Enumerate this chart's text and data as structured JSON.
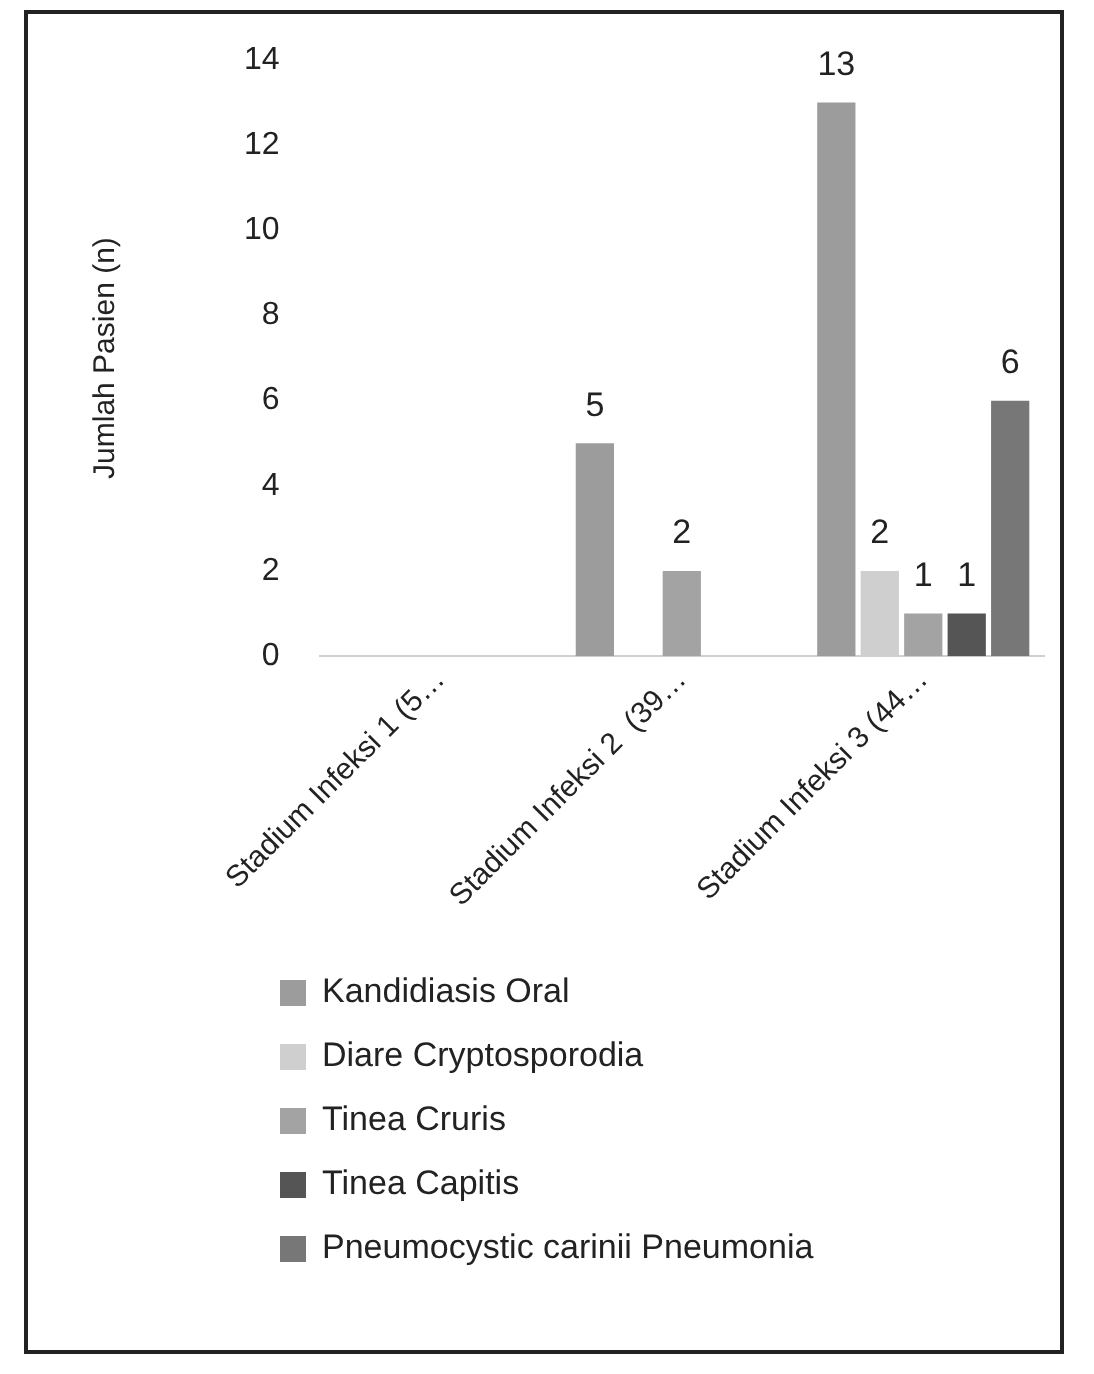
{
  "chart_data": {
    "type": "bar",
    "ylabel": "Jumlah Pasien (n)",
    "categories": [
      "Stadium Infeksi 1 (5…",
      "Stadium Infeksi 2  (39…",
      "Stadium Infeksi 3 (44…"
    ],
    "series": [
      {
        "name": "Kandidiasis Oral",
        "color": "#9c9c9c",
        "values": [
          0,
          5,
          13
        ],
        "value_labels": [
          null,
          "5",
          "13"
        ]
      },
      {
        "name": "Diare Cryptosporodia",
        "color": "#cfcfcf",
        "values": [
          0,
          0,
          2
        ],
        "value_labels": [
          null,
          null,
          "2"
        ]
      },
      {
        "name": "Tinea Cruris",
        "color": "#a3a3a3",
        "values": [
          0,
          2,
          1
        ],
        "value_labels": [
          null,
          "2",
          "1"
        ]
      },
      {
        "name": "Tinea Capitis",
        "color": "#555555",
        "values": [
          0,
          0,
          1
        ],
        "value_labels": [
          null,
          null,
          "1"
        ]
      },
      {
        "name": "Pneumocystic carinii Pneumonia",
        "color": "#777777",
        "values": [
          0,
          0,
          6
        ],
        "value_labels": [
          null,
          null,
          "6"
        ]
      }
    ],
    "ylim": [
      0,
      14
    ],
    "yticks": [
      0,
      2,
      4,
      6,
      8,
      10,
      12,
      14
    ],
    "grid": false,
    "legend": "bottom"
  }
}
